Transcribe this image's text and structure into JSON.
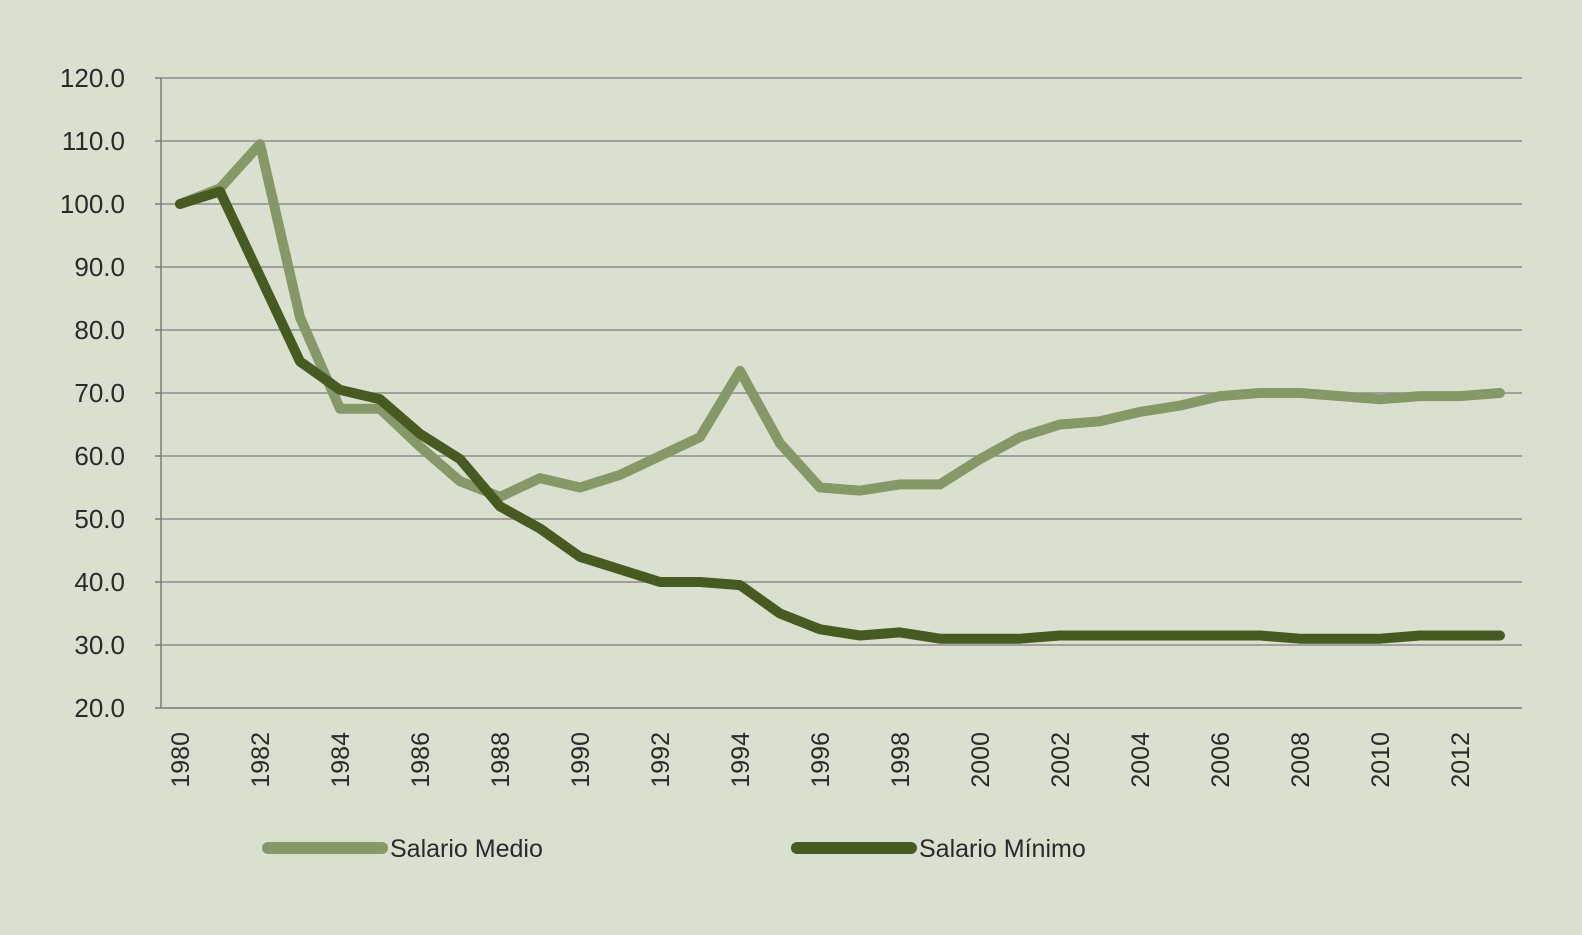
{
  "chart_data": {
    "type": "line",
    "title": "",
    "xlabel": "",
    "ylabel": "",
    "x": [
      1980,
      1981,
      1982,
      1983,
      1984,
      1985,
      1986,
      1987,
      1988,
      1989,
      1990,
      1991,
      1992,
      1993,
      1994,
      1995,
      1996,
      1997,
      1998,
      1999,
      2000,
      2001,
      2002,
      2003,
      2004,
      2005,
      2006,
      2007,
      2008,
      2009,
      2010,
      2011,
      2012,
      2013
    ],
    "x_tick_labels": [
      "1980",
      "1982",
      "1984",
      "1986",
      "1988",
      "1990",
      "1992",
      "1994",
      "1996",
      "1998",
      "2000",
      "2002",
      "2004",
      "2006",
      "2008",
      "2010",
      "2012"
    ],
    "y_tick_labels": [
      "120.0",
      "110.0",
      "100.0",
      "90.0",
      "80.0",
      "70.0",
      "60.0",
      "50.0",
      "40.0",
      "30.0",
      "20.0"
    ],
    "ylim": [
      20,
      120
    ],
    "grid": true,
    "legend_position": "bottom",
    "series": [
      {
        "name": "Salario Medio",
        "color": "#879868",
        "values": [
          100.0,
          102.5,
          109.5,
          82.0,
          67.5,
          67.5,
          61.5,
          56.0,
          53.5,
          56.5,
          55.0,
          57.0,
          60.0,
          63.0,
          73.5,
          62.0,
          55.0,
          54.5,
          55.5,
          55.5,
          59.5,
          63.0,
          65.0,
          65.5,
          67.0,
          68.0,
          69.5,
          70.0,
          70.0,
          69.5,
          69.0,
          69.5,
          69.5,
          70.0
        ]
      },
      {
        "name": "Salario Mínimo",
        "color": "#475a22",
        "values": [
          100.0,
          102.0,
          88.5,
          75.0,
          70.5,
          69.0,
          63.5,
          59.5,
          52.0,
          48.5,
          44.0,
          42.0,
          40.0,
          40.0,
          39.5,
          35.0,
          32.5,
          31.5,
          32.0,
          31.0,
          31.0,
          31.0,
          31.5,
          31.5,
          31.5,
          31.5,
          31.5,
          31.5,
          31.0,
          31.0,
          31.0,
          31.5,
          31.5,
          31.5
        ]
      }
    ]
  },
  "colors": {
    "background": "#d9e0cf",
    "gridline": "#8c8c8c",
    "axis": "#7a7a7a",
    "text": "#2a2a2a"
  }
}
